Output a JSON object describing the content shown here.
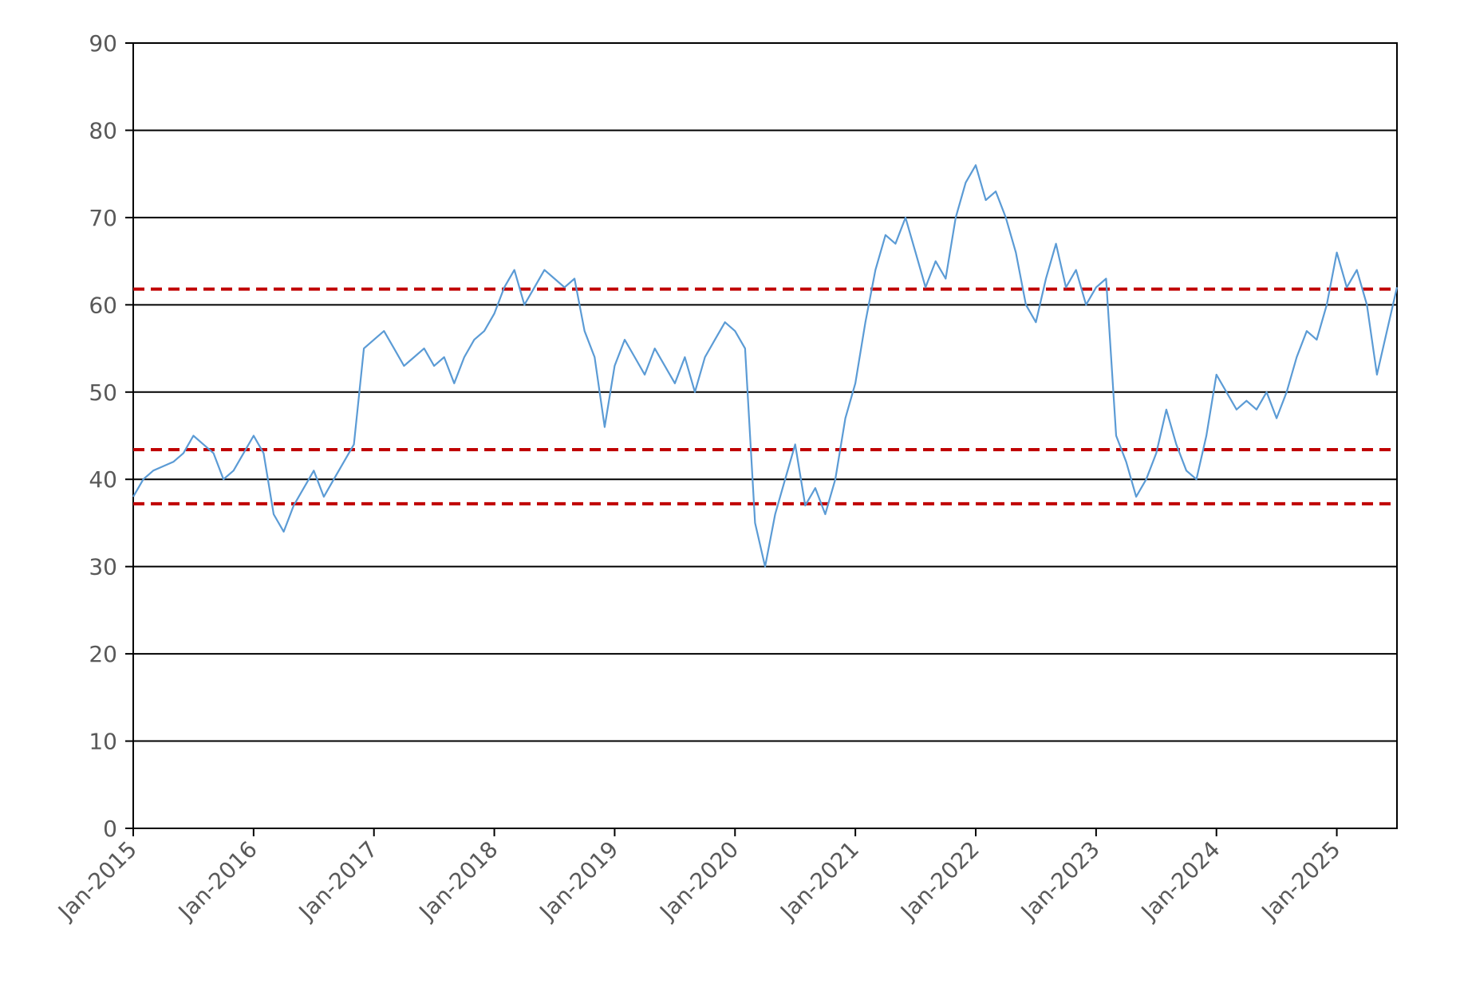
{
  "chart_data": {
    "type": "line",
    "x": [
      "2015-01",
      "2015-02",
      "2015-03",
      "2015-04",
      "2015-05",
      "2015-06",
      "2015-07",
      "2015-08",
      "2015-09",
      "2015-10",
      "2015-11",
      "2015-12",
      "2016-01",
      "2016-02",
      "2016-03",
      "2016-04",
      "2016-05",
      "2016-06",
      "2016-07",
      "2016-08",
      "2016-09",
      "2016-10",
      "2016-11",
      "2016-12",
      "2017-01",
      "2017-02",
      "2017-03",
      "2017-04",
      "2017-05",
      "2017-06",
      "2017-07",
      "2017-08",
      "2017-09",
      "2017-10",
      "2017-11",
      "2017-12",
      "2018-01",
      "2018-02",
      "2018-03",
      "2018-04",
      "2018-05",
      "2018-06",
      "2018-07",
      "2018-08",
      "2018-09",
      "2018-10",
      "2018-11",
      "2018-12",
      "2019-01",
      "2019-02",
      "2019-03",
      "2019-04",
      "2019-05",
      "2019-06",
      "2019-07",
      "2019-08",
      "2019-09",
      "2019-10",
      "2019-11",
      "2019-12",
      "2020-01",
      "2020-02",
      "2020-03",
      "2020-04",
      "2020-05",
      "2020-06",
      "2020-07",
      "2020-08",
      "2020-09",
      "2020-10",
      "2020-11",
      "2020-12",
      "2021-01",
      "2021-02",
      "2021-03",
      "2021-04",
      "2021-05",
      "2021-06",
      "2021-07",
      "2021-08",
      "2021-09",
      "2021-10",
      "2021-11",
      "2021-12",
      "2022-01",
      "2022-02",
      "2022-03",
      "2022-04",
      "2022-05",
      "2022-06",
      "2022-07",
      "2022-08",
      "2022-09",
      "2022-10",
      "2022-11",
      "2022-12",
      "2023-01",
      "2023-02",
      "2023-03",
      "2023-04",
      "2023-05",
      "2023-06",
      "2023-07",
      "2023-08",
      "2023-09",
      "2023-10",
      "2023-11",
      "2023-12",
      "2024-01",
      "2024-02",
      "2024-03",
      "2024-04",
      "2024-05",
      "2024-06",
      "2024-07",
      "2024-08",
      "2024-09",
      "2024-10",
      "2024-11",
      "2024-12",
      "2025-01",
      "2025-02",
      "2025-03",
      "2025-04",
      "2025-05",
      "2025-06",
      "2025-07"
    ],
    "series": [
      {
        "color": "#5b9bd5",
        "values": [
          38,
          40,
          41,
          41.5,
          42,
          43,
          45,
          44,
          43,
          40,
          41,
          43,
          45,
          43,
          36,
          34,
          37,
          39,
          41,
          38,
          40,
          42,
          44,
          55,
          56,
          57,
          55,
          53,
          54,
          55,
          53,
          54,
          51,
          54,
          56,
          57,
          59,
          62,
          64,
          60,
          62,
          64,
          63,
          62,
          63,
          57,
          54,
          46,
          53,
          56,
          54,
          52,
          55,
          53,
          51,
          54,
          50,
          54,
          56,
          58,
          57,
          55,
          35,
          30,
          36,
          40,
          44,
          37,
          39,
          36,
          40,
          47,
          51,
          58,
          64,
          68,
          67,
          70,
          66,
          62,
          65,
          63,
          70,
          74,
          76,
          72,
          73,
          70,
          66,
          60,
          58,
          63,
          67,
          62,
          64,
          60,
          62,
          63,
          45,
          42,
          38,
          40,
          43,
          48,
          44,
          41,
          40,
          45,
          52,
          50,
          48,
          49,
          48,
          50,
          47,
          50,
          54,
          57,
          56,
          60,
          66,
          62,
          64,
          60,
          52,
          57,
          62
        ]
      }
    ],
    "reference_lines": {
      "color": "#c00000",
      "values": [
        61.8,
        43.4,
        37.2
      ]
    },
    "xlim": [
      "2015-01",
      "2025-07"
    ],
    "xticks": [
      {
        "value": "2015-01",
        "label": "Jan-2015"
      },
      {
        "value": "2016-01",
        "label": "Jan-2016"
      },
      {
        "value": "2017-01",
        "label": "Jan-2017"
      },
      {
        "value": "2018-01",
        "label": "Jan-2018"
      },
      {
        "value": "2019-01",
        "label": "Jan-2019"
      },
      {
        "value": "2020-01",
        "label": "Jan-2020"
      },
      {
        "value": "2021-01",
        "label": "Jan-2021"
      },
      {
        "value": "2022-01",
        "label": "Jan-2022"
      },
      {
        "value": "2023-01",
        "label": "Jan-2023"
      },
      {
        "value": "2024-01",
        "label": "Jan-2024"
      },
      {
        "value": "2025-01",
        "label": "Jan-2025"
      }
    ],
    "ylim": [
      0,
      90
    ],
    "yticks": [
      0,
      10,
      20,
      30,
      40,
      50,
      60,
      70,
      80,
      90
    ],
    "grid": true
  }
}
